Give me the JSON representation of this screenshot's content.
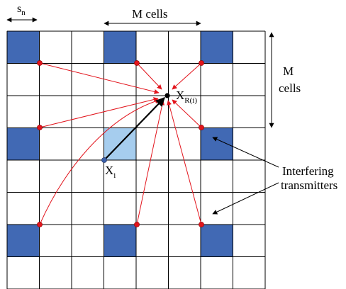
{
  "labels": {
    "sn_main": "s",
    "sn_sub": "n",
    "m_cells_top": "M cells",
    "m_right_1": "M",
    "m_right_2": "cells",
    "x_main": "X",
    "x_sub": "i",
    "xr_main": "X",
    "xr_sub": "R(i)",
    "interfering_1": "Interfering",
    "interfering_2": "transmitters"
  },
  "grid": {
    "rows": 8,
    "cols": 8,
    "dark_cells": [
      [
        0,
        0
      ],
      [
        0,
        3
      ],
      [
        0,
        6
      ],
      [
        3,
        0
      ],
      [
        3,
        6
      ],
      [
        6,
        0
      ],
      [
        6,
        3
      ],
      [
        6,
        6
      ]
    ],
    "light_cells": [
      [
        3,
        3
      ]
    ]
  },
  "colors": {
    "grid_line": "#000000",
    "dark_cell": "#4169b4",
    "light_cell": "#a6cdee",
    "interferer_arrow": "#e2141c",
    "interferer_dot": "#e2141c",
    "main_arrow": "#000000",
    "tx_dot": "#3a5fa8"
  }
}
